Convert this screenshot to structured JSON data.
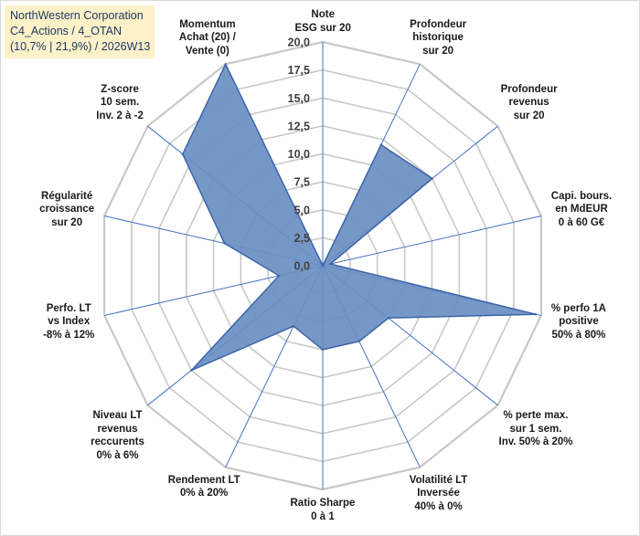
{
  "title": {
    "lines": [
      "NorthWestern Corporation",
      "C4_Actions / 4_OTAN",
      "(10,7% | 21,9%) / 2026W13"
    ]
  },
  "colors": {
    "fill": "#6a8fc2",
    "stroke": "#3c64aa",
    "grid": "#c8c8c8",
    "spoke": "#4472c4",
    "title_bg": "#fdf1c8",
    "title_text": "#1f3864"
  },
  "chart_data": {
    "type": "radar",
    "rmin": 0,
    "rmax": 20,
    "step": 2.5,
    "tick_labels": [
      "0,0",
      "2,5",
      "5,0",
      "7,5",
      "10,0",
      "12,5",
      "15,0",
      "17,5",
      "20,0"
    ],
    "categories": [
      {
        "lines": [
          "Note",
          "ESG sur 20"
        ]
      },
      {
        "lines": [
          "Profondeur",
          "historique",
          "sur 20"
        ]
      },
      {
        "lines": [
          "Profondeur",
          "revenus",
          "sur 20"
        ]
      },
      {
        "lines": [
          "Capi. bours.",
          "en MdEUR",
          "0 à 60 G€"
        ]
      },
      {
        "lines": [
          "% perfo 1A",
          "positive",
          "50% à 80%"
        ]
      },
      {
        "lines": [
          "% perte max.",
          "sur 1 sem.",
          "Inv. 50% à 20%"
        ]
      },
      {
        "lines": [
          "Volatilité LT",
          "Inversée",
          "40% à 0%"
        ]
      },
      {
        "lines": [
          "Ratio Sharpe",
          "0 à 1"
        ]
      },
      {
        "lines": [
          "Rendement LT",
          "0% à 20%"
        ]
      },
      {
        "lines": [
          "Niveau LT",
          "revenus",
          "reccurents",
          "0% à 6%"
        ]
      },
      {
        "lines": [
          "Perfo. LT",
          "vs Index",
          "-8% à 12%"
        ]
      },
      {
        "lines": [
          "Régularité",
          "croissance",
          "sur 20"
        ]
      },
      {
        "lines": [
          "Z-score",
          "10 sem.",
          "Inv. 2 à -2"
        ]
      },
      {
        "lines": [
          "Momentum",
          "Achat (20) /",
          "Vente (0)"
        ]
      }
    ],
    "series": [
      {
        "name": "NorthWestern Corporation",
        "values": [
          0,
          12,
          12.5,
          0.7,
          19.5,
          7.5,
          7.5,
          7.5,
          6,
          15,
          4,
          9,
          16,
          20
        ]
      }
    ]
  }
}
